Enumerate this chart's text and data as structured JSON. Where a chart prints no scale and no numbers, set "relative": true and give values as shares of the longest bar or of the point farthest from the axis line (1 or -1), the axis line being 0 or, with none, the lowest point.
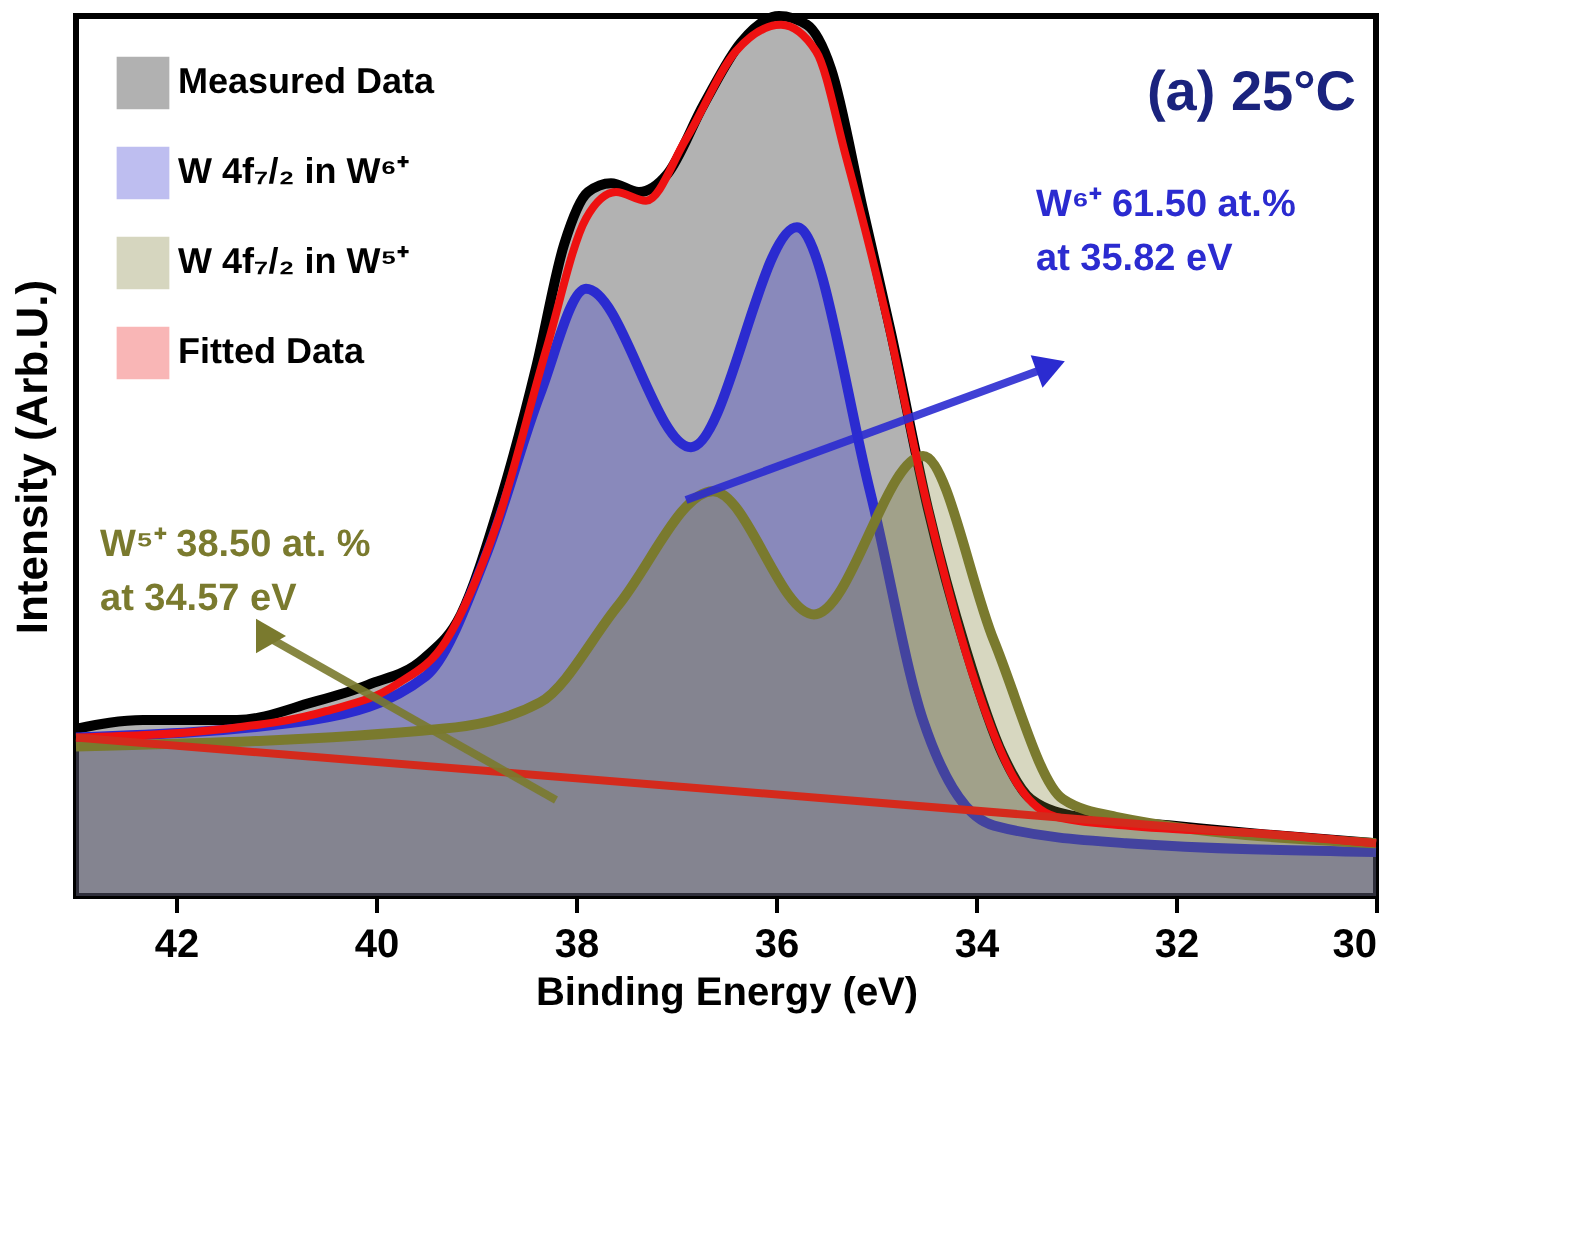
{
  "chart_data": {
    "type": "line",
    "xlabel": "Binding Energy (eV)",
    "ylabel": "Intensity (Arb.U.)",
    "relative": true,
    "xlim": [
      43,
      30
    ],
    "xticks": [
      42,
      40,
      38,
      36,
      34,
      32,
      30
    ],
    "tick_labels": "x",
    "legend": "top left",
    "grid": false,
    "annotations": [
      "(a) 25°C",
      "W⁶⁺ 61.50 at.%\nat 35.82 eV",
      "W⁵⁺ 38.50 at. %\nat 34.57 eV"
    ],
    "series": [
      {
        "name": "Measured Data",
        "type": "area",
        "color": "#000000",
        "x": [
          43.0,
          42.33,
          41.39,
          40.64,
          40.08,
          39.52,
          39.15,
          38.78,
          38.4,
          38.12,
          37.88,
          37.65,
          37.37,
          37.09,
          36.72,
          36.35,
          35.97,
          35.69,
          35.45,
          35.13,
          34.85,
          34.48,
          34.1,
          33.73,
          33.45,
          32.98,
          32.05,
          31.11,
          30.0
        ],
        "values": [
          0.19,
          0.2,
          0.2,
          0.22,
          0.24,
          0.27,
          0.32,
          0.44,
          0.6,
          0.74,
          0.8,
          0.81,
          0.8,
          0.82,
          0.9,
          0.97,
          1.0,
          0.99,
          0.94,
          0.78,
          0.64,
          0.44,
          0.28,
          0.16,
          0.11,
          0.09,
          0.08,
          0.07,
          0.06
        ]
      },
      {
        "name": "W 4f₇/₂ in W⁶⁺",
        "type": "area",
        "color": "#2b2bd0",
        "x": [
          43.0,
          40.64,
          39.5,
          38.89,
          38.36,
          37.9,
          36.85,
          35.79,
          35.06,
          34.53,
          33.82,
          32.5,
          30.0
        ],
        "values": [
          0.18,
          0.2,
          0.25,
          0.39,
          0.57,
          0.69,
          0.51,
          0.76,
          0.46,
          0.2,
          0.08,
          0.06,
          0.05
        ]
      },
      {
        "name": "W 4f₇/₂ in W⁵⁺",
        "type": "area",
        "color": "#7a7a2e",
        "x": [
          43.0,
          39.34,
          38.36,
          37.58,
          36.63,
          35.62,
          34.53,
          33.82,
          33.13,
          32.6,
          30.0
        ],
        "values": [
          0.17,
          0.19,
          0.22,
          0.33,
          0.46,
          0.32,
          0.5,
          0.29,
          0.11,
          0.09,
          0.06
        ]
      },
      {
        "name": "Fitted Data",
        "type": "line",
        "color": "#ee1111",
        "x": [
          43.0,
          41.5,
          40.5,
          39.8,
          39.3,
          38.8,
          38.3,
          37.9,
          37.6,
          37.3,
          36.9,
          36.4,
          35.95,
          35.6,
          35.3,
          34.9,
          34.5,
          34.0,
          33.6,
          33.2,
          32.5,
          31.0,
          30.0
        ],
        "values": [
          0.18,
          0.19,
          0.21,
          0.24,
          0.29,
          0.42,
          0.62,
          0.77,
          0.8,
          0.79,
          0.86,
          0.96,
          0.99,
          0.96,
          0.84,
          0.66,
          0.45,
          0.24,
          0.13,
          0.09,
          0.08,
          0.07,
          0.06
        ]
      },
      {
        "color": "#d42a1c",
        "x": [
          43.0,
          30.0
        ],
        "values": [
          0.18,
          0.06
        ]
      }
    ]
  }
}
